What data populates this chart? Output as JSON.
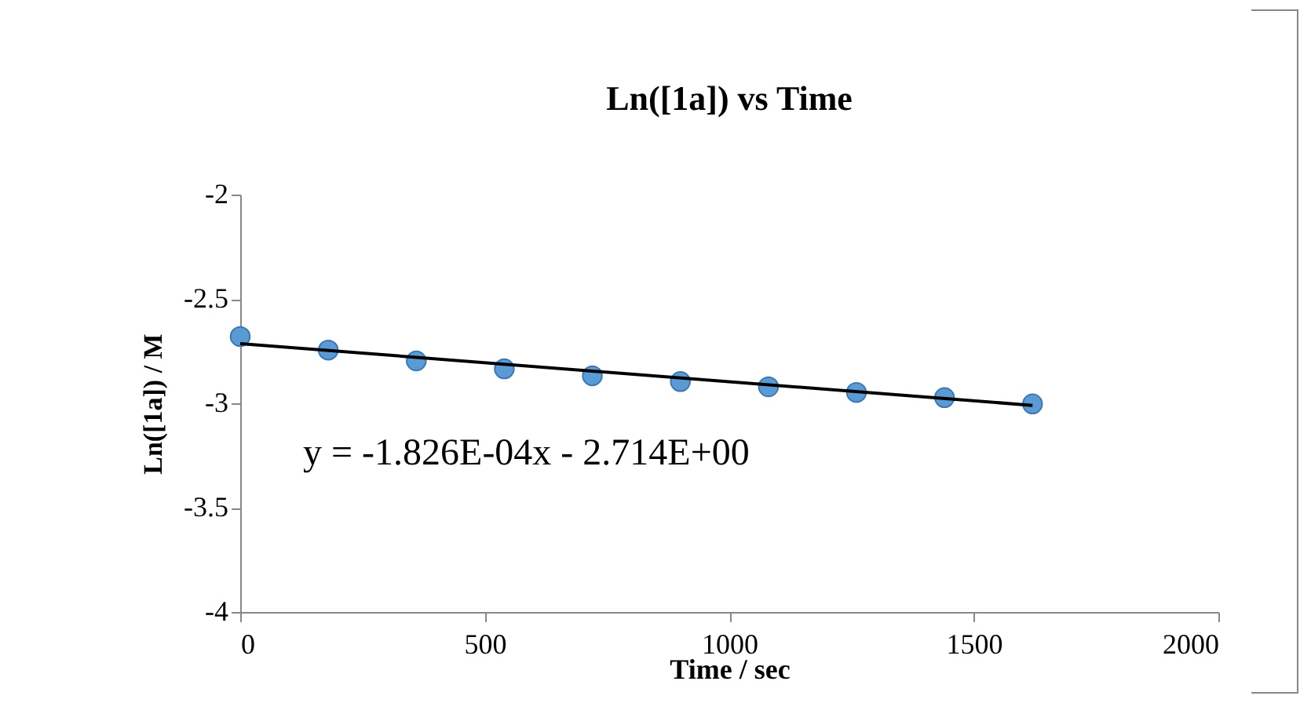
{
  "chart_data": {
    "type": "scatter",
    "title": "Ln([1a]) vs Time",
    "xlabel": "Time / sec",
    "ylabel": "Ln([1a]) / M",
    "x": [
      0,
      180,
      360,
      540,
      720,
      900,
      1080,
      1260,
      1440,
      1620
    ],
    "series": [
      {
        "color": "#5b9bd5",
        "marker": "circle",
        "values": [
          -2.68,
          -2.745,
          -2.797,
          -2.835,
          -2.868,
          -2.896,
          -2.921,
          -2.948,
          -2.973,
          -3.003
        ]
      },
      {
        "type": "line",
        "color": "#000000",
        "x": [
          0,
          1620
        ],
        "values": [
          -2.714,
          -3.01
        ]
      }
    ],
    "xlim": [
      0,
      2000
    ],
    "xticks": [
      0,
      500,
      1000,
      1500,
      2000
    ],
    "ylim": [
      -4,
      -2
    ],
    "yticks": [
      -2,
      -2.5,
      -3,
      -3.5,
      -4
    ],
    "annotations": [
      "y = -1.826E-04x - 2.714E+00"
    ],
    "grid": false
  }
}
